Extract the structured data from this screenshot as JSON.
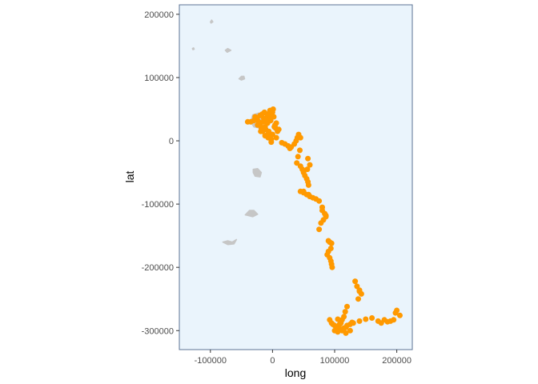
{
  "chart_data": {
    "type": "scatter",
    "title": "",
    "xlabel": "long",
    "ylabel": "lat",
    "xlim": [
      -150000,
      225000
    ],
    "ylim": [
      -330000,
      215000
    ],
    "x_ticks": [
      {
        "value": -100000,
        "label": "-100000"
      },
      {
        "value": 0,
        "label": "0"
      },
      {
        "value": 100000,
        "label": "100000"
      },
      {
        "value": 200000,
        "label": "200000"
      }
    ],
    "y_ticks": [
      {
        "value": 200000,
        "label": "200000"
      },
      {
        "value": 100000,
        "label": "100000"
      },
      {
        "value": 0,
        "label": "0"
      },
      {
        "value": -100000,
        "label": "-100000"
      },
      {
        "value": -200000,
        "label": "-200000"
      },
      {
        "value": -300000,
        "label": "-300000"
      }
    ],
    "grid": false,
    "legend": "none",
    "colors": {
      "panel_background": "#eaf4fc",
      "panel_border": "#5c7394",
      "points": "#ff9900",
      "land": "#c6c6c6",
      "tick_text": "#4d4d4d",
      "axis_title": "#000000"
    },
    "land_polygons": [
      {
        "name": "island-1",
        "points": [
          [
            -100000,
            188000
          ],
          [
            -98000,
            191000
          ],
          [
            -96000,
            188000
          ],
          [
            -99000,
            186000
          ]
        ]
      },
      {
        "name": "island-2",
        "points": [
          [
            -76000,
            143000
          ],
          [
            -72000,
            146000
          ],
          [
            -67000,
            143000
          ],
          [
            -73000,
            140000
          ]
        ]
      },
      {
        "name": "island-3",
        "points": [
          [
            -129000,
            146000
          ],
          [
            -127000,
            147000
          ],
          [
            -126000,
            145000
          ],
          [
            -128000,
            144000
          ]
        ]
      },
      {
        "name": "island-4",
        "points": [
          [
            -54000,
            98000
          ],
          [
            -50000,
            102000
          ],
          [
            -46000,
            102000
          ],
          [
            -45000,
            98000
          ],
          [
            -50000,
            96000
          ]
        ]
      },
      {
        "name": "island-5",
        "points": [
          [
            -32000,
            41000
          ],
          [
            -22000,
            44000
          ],
          [
            -18000,
            30000
          ],
          [
            -20000,
            20000
          ],
          [
            -30000,
            22000
          ],
          [
            -35000,
            30000
          ]
        ]
      },
      {
        "name": "island-6",
        "points": [
          [
            -31000,
            -45000
          ],
          [
            -24000,
            -44000
          ],
          [
            -18000,
            -50000
          ],
          [
            -20000,
            -57000
          ],
          [
            -28000,
            -56000
          ],
          [
            -31000,
            -50000
          ]
        ]
      },
      {
        "name": "island-7",
        "points": [
          [
            -44000,
            -117000
          ],
          [
            -37000,
            -110000
          ],
          [
            -30000,
            -110000
          ],
          [
            -24000,
            -116000
          ],
          [
            -32000,
            -120000
          ],
          [
            -40000,
            -118000
          ]
        ]
      },
      {
        "name": "island-8",
        "points": [
          [
            -80000,
            -160000
          ],
          [
            -72000,
            -158000
          ],
          [
            -65000,
            -160000
          ],
          [
            -58000,
            -156000
          ],
          [
            -62000,
            -163000
          ],
          [
            -72000,
            -164000
          ]
        ]
      }
    ],
    "series": [
      {
        "x": [
          -20000,
          -15000,
          -10000,
          -5000,
          0,
          -18000,
          -12000,
          -8000,
          -3000,
          2000,
          -16000,
          -11000,
          -6000,
          -1000,
          4000,
          -14000,
          -9000,
          -4000,
          1000,
          -12000,
          -7000,
          -2000,
          -22000,
          -25000,
          -28000,
          -20000,
          -17000,
          5000,
          8000,
          10000,
          6000,
          -30000,
          -35000,
          -40000,
          -8000,
          -5000,
          -24000,
          3000,
          -13000,
          -19000,
          -6000,
          0,
          6000,
          -10000,
          -3000,
          -2000,
          -15000,
          15000,
          20000,
          25000,
          28000,
          30000,
          35000,
          38000,
          40000,
          42000,
          45000,
          44000,
          41000,
          39000,
          45000,
          48000,
          50000,
          52000,
          55000,
          57000,
          58000,
          56000,
          57000,
          60000,
          45000,
          50000,
          55000,
          60000,
          65000,
          70000,
          75000,
          50000,
          58000,
          80000,
          84000,
          86000,
          82000,
          78000,
          75000,
          80000,
          86000,
          90000,
          92000,
          95000,
          94000,
          90000,
          88000,
          92000,
          94000,
          95000,
          96000,
          133000,
          136000,
          140000,
          143000,
          138000,
          140000,
          120000,
          117000,
          115000,
          112000,
          110000,
          108000,
          105000,
          100000,
          97000,
          95000,
          100000,
          105000,
          110000,
          115000,
          120000,
          125000,
          130000,
          140000,
          150000,
          160000,
          170000,
          175000,
          180000,
          185000,
          190000,
          195000,
          200000,
          205000,
          198000,
          105000,
          112000,
          118000,
          125000,
          92000,
          112000,
          118000,
          128000
        ],
        "y": [
          25000,
          30000,
          35000,
          40000,
          45000,
          20000,
          22000,
          28000,
          32000,
          38000,
          15000,
          18000,
          12000,
          10000,
          25000,
          35000,
          42000,
          48000,
          50000,
          8000,
          5000,
          2000,
          30000,
          35000,
          38000,
          40000,
          42000,
          20000,
          15000,
          18000,
          28000,
          32000,
          30000,
          30000,
          10000,
          5000,
          25000,
          22000,
          45000,
          15000,
          15000,
          10000,
          5000,
          33000,
          38000,
          -2000,
          20000,
          -3000,
          -5000,
          -8000,
          -12000,
          -10000,
          -5000,
          0,
          5000,
          10000,
          5000,
          -15000,
          -25000,
          -35000,
          -40000,
          -45000,
          -50000,
          -55000,
          -60000,
          -65000,
          -70000,
          -45000,
          -28000,
          -38000,
          -80000,
          -82000,
          -85000,
          -88000,
          -90000,
          -92000,
          -95000,
          -80000,
          -85000,
          -105000,
          -115000,
          -120000,
          -125000,
          -130000,
          -140000,
          -110000,
          -118000,
          -158000,
          -160000,
          -162000,
          -170000,
          -175000,
          -180000,
          -185000,
          -190000,
          -195000,
          -200000,
          -222000,
          -230000,
          -238000,
          -242000,
          -250000,
          -236000,
          -262000,
          -270000,
          -278000,
          -283000,
          -288000,
          -290000,
          -295000,
          -292000,
          -290000,
          -288000,
          -300000,
          -302000,
          -298000,
          -296000,
          -292000,
          -290000,
          -288000,
          -285000,
          -282000,
          -280000,
          -285000,
          -288000,
          -283000,
          -286000,
          -285000,
          -283000,
          -268000,
          -276000,
          -272000,
          -282000,
          -298000,
          -295000,
          -300000,
          -283000,
          -300000,
          -304000,
          -287000
        ]
      }
    ]
  }
}
